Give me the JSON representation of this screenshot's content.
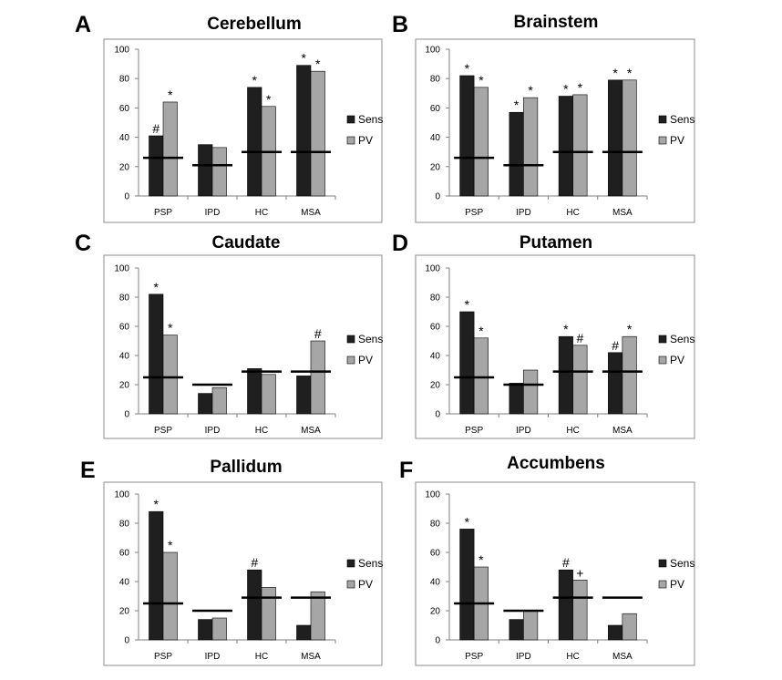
{
  "chart_data": [
    {
      "type": "bar",
      "letter": "A",
      "title": "Cerebellum",
      "categories": [
        "PSP",
        "IPD",
        "HC",
        "MSA"
      ],
      "ylim": [
        0,
        100
      ],
      "yticks": [
        "0",
        "20",
        "40",
        "60",
        "80",
        "100"
      ],
      "series": [
        {
          "name": "Sens",
          "color": "#1f1f1f",
          "values": [
            41,
            35,
            74,
            89
          ],
          "marks": [
            "#",
            "",
            "*",
            "*"
          ]
        },
        {
          "name": "PV",
          "color": "#a6a6a6",
          "values": [
            64,
            33,
            61,
            85
          ],
          "marks": [
            "*",
            "",
            "*",
            "*"
          ]
        }
      ],
      "threshold_lines": [
        26,
        21,
        30,
        30
      ],
      "legend": "right",
      "grid": false
    },
    {
      "type": "bar",
      "letter": "B",
      "title": "Brainstem",
      "categories": [
        "PSP",
        "IPD",
        "HC",
        "MSA"
      ],
      "ylim": [
        0,
        100
      ],
      "yticks": [
        "0",
        "20",
        "40",
        "60",
        "80",
        "100"
      ],
      "series": [
        {
          "name": "Sens",
          "color": "#1f1f1f",
          "values": [
            82,
            57,
            68,
            79
          ],
          "marks": [
            "*",
            "*",
            "*",
            "*"
          ]
        },
        {
          "name": "PV",
          "color": "#a6a6a6",
          "values": [
            74,
            67,
            69,
            79
          ],
          "marks": [
            "*",
            "*",
            "*",
            "*"
          ]
        }
      ],
      "threshold_lines": [
        26,
        21,
        30,
        30
      ],
      "legend": "right",
      "grid": false
    },
    {
      "type": "bar",
      "letter": "C",
      "title": "Caudate",
      "categories": [
        "PSP",
        "IPD",
        "HC",
        "MSA"
      ],
      "ylim": [
        0,
        100
      ],
      "yticks": [
        "0",
        "20",
        "40",
        "60",
        "80",
        "100"
      ],
      "series": [
        {
          "name": "Sens",
          "color": "#1f1f1f",
          "values": [
            82,
            14,
            31,
            26
          ],
          "marks": [
            "*",
            "",
            "",
            ""
          ]
        },
        {
          "name": "PV",
          "color": "#a6a6a6",
          "values": [
            54,
            18,
            27,
            50
          ],
          "marks": [
            "*",
            "",
            "",
            "#"
          ]
        }
      ],
      "threshold_lines": [
        25,
        20,
        29,
        29
      ],
      "legend": "right",
      "grid": false
    },
    {
      "type": "bar",
      "letter": "D",
      "title": "Putamen",
      "categories": [
        "PSP",
        "IPD",
        "HC",
        "MSA"
      ],
      "ylim": [
        0,
        100
      ],
      "yticks": [
        "0",
        "20",
        "40",
        "60",
        "80",
        "100"
      ],
      "series": [
        {
          "name": "Sens",
          "color": "#1f1f1f",
          "values": [
            70,
            21,
            53,
            42
          ],
          "marks": [
            "*",
            "",
            "*",
            "#"
          ]
        },
        {
          "name": "PV",
          "color": "#a6a6a6",
          "values": [
            52,
            30,
            47,
            53
          ],
          "marks": [
            "*",
            "",
            "#",
            "*"
          ]
        }
      ],
      "threshold_lines": [
        25,
        20,
        29,
        29
      ],
      "legend": "right",
      "grid": false
    },
    {
      "type": "bar",
      "letter": "E",
      "title": "Pallidum",
      "categories": [
        "PSP",
        "IPD",
        "HC",
        "MSA"
      ],
      "ylim": [
        0,
        100
      ],
      "yticks": [
        "0",
        "20",
        "40",
        "60",
        "80",
        "100"
      ],
      "series": [
        {
          "name": "Sens",
          "color": "#1f1f1f",
          "values": [
            88,
            14,
            48,
            10
          ],
          "marks": [
            "*",
            "",
            "#",
            ""
          ]
        },
        {
          "name": "PV",
          "color": "#a6a6a6",
          "values": [
            60,
            15,
            36,
            33
          ],
          "marks": [
            "*",
            "",
            "",
            ""
          ]
        }
      ],
      "threshold_lines": [
        25,
        20,
        29,
        29
      ],
      "legend": "right",
      "grid": false
    },
    {
      "type": "bar",
      "letter": "F",
      "title": "Accumbens",
      "categories": [
        "PSP",
        "IPD",
        "HC",
        "MSA"
      ],
      "ylim": [
        0,
        100
      ],
      "yticks": [
        "0",
        "20",
        "40",
        "60",
        "80",
        "100"
      ],
      "series": [
        {
          "name": "Sens",
          "color": "#1f1f1f",
          "values": [
            76,
            14,
            48,
            10
          ],
          "marks": [
            "*",
            "",
            "#",
            ""
          ]
        },
        {
          "name": "PV",
          "color": "#a6a6a6",
          "values": [
            50,
            20,
            41,
            18
          ],
          "marks": [
            "*",
            "",
            "+",
            ""
          ]
        }
      ],
      "threshold_lines": [
        25,
        20,
        29,
        29
      ],
      "legend": "right",
      "grid": false
    }
  ]
}
